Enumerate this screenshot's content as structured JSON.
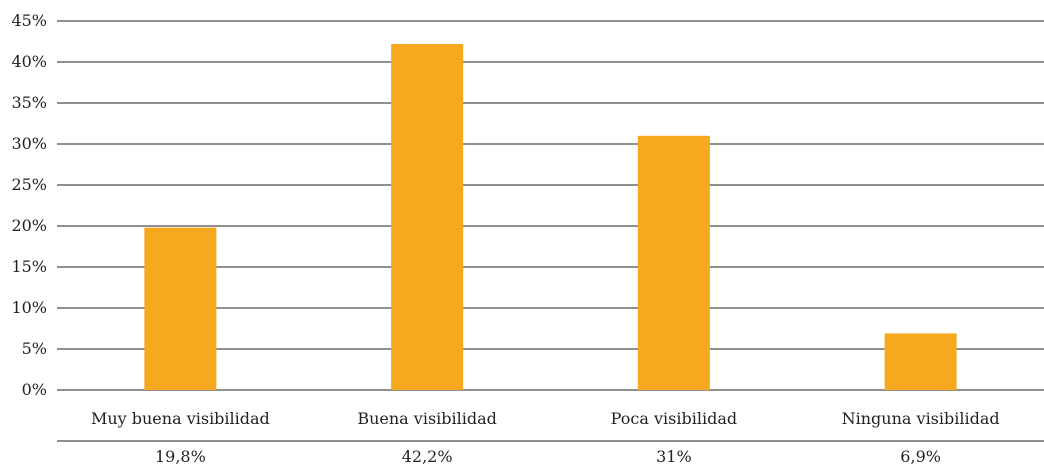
{
  "chart_data": {
    "type": "bar",
    "categories": [
      "Muy buena visibilidad",
      "Buena visibilidad",
      "Poca visibilidad",
      "Ninguna visibilidad"
    ],
    "values": [
      19.8,
      42.2,
      31,
      6.9
    ],
    "value_labels": [
      "19,8%",
      "42,2%",
      "31%",
      "6,9%"
    ],
    "y_ticks": [
      "0%",
      "5%",
      "10%",
      "15%",
      "20%",
      "25%",
      "30%",
      "35%",
      "40%",
      "45%"
    ],
    "ylim": [
      0,
      45
    ],
    "title": "",
    "xlabel": "",
    "ylabel": "",
    "grid": true,
    "bar_color": "#f6a81f"
  }
}
